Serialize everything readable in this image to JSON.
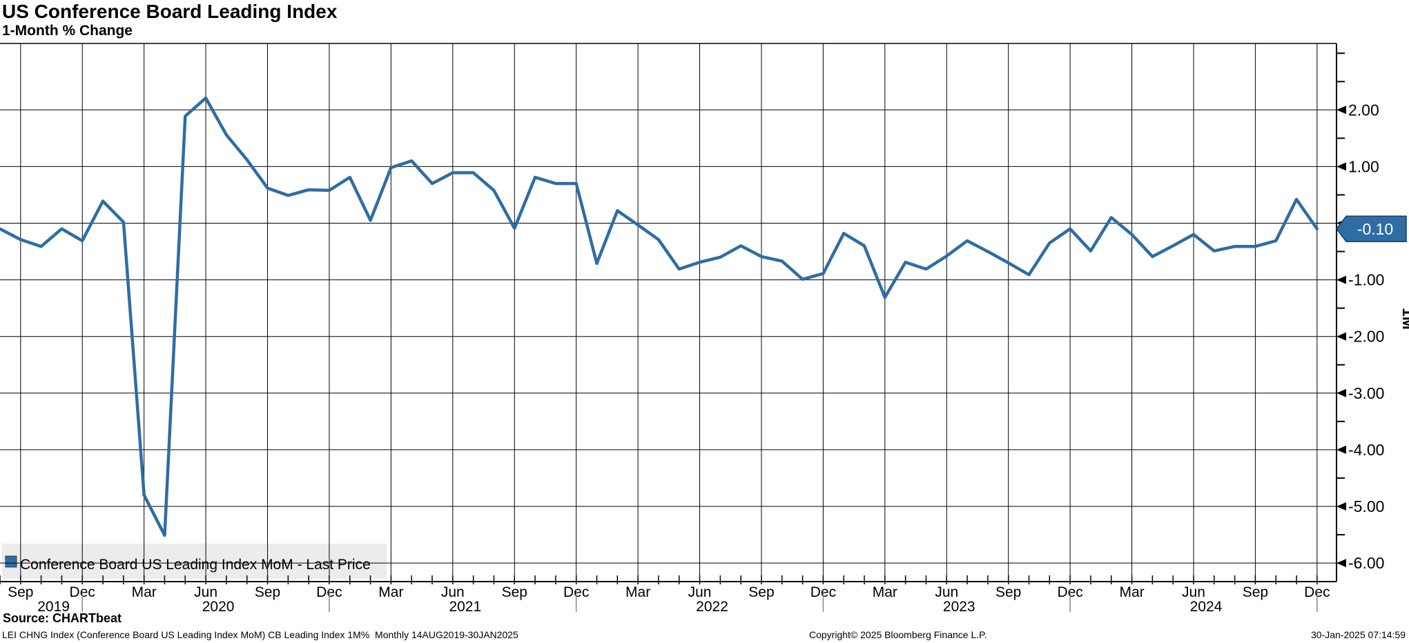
{
  "header": {
    "title": "US Conference Board Leading Index",
    "subtitle": "1-Month % Change"
  },
  "legend": {
    "label": "Conference Board US Leading Index MoM - Last Price"
  },
  "last_price_badge": {
    "label": "-0.10"
  },
  "right_axis_tag": "1M",
  "source_line": "Source: CHARTbeat",
  "footer": {
    "left": "LEI CHNG Index (Conference Board US Leading Index MoM) CB Leading Index 1M%  Monthly 14AUG2019-30JAN2025",
    "center": "Copyright© 2025 Bloomberg Finance L.P.",
    "right": "30-Jan-2025 07:14:59"
  },
  "colors": {
    "line": "#2e6da4",
    "badge_fill": "#2e6da4",
    "badge_border": "#1a3f66",
    "badge_text": "#ffffff",
    "grid": "#000000",
    "legend_bg": "#e7e7e7",
    "year_separator": "#888888"
  },
  "chart_data": {
    "type": "line",
    "title": "US Conference Board Leading Index",
    "subtitle": "1-Month % Change",
    "ylabel": "1M",
    "legend_position": "bottom-left",
    "grid": true,
    "ylim": [
      -6.33,
      3.17
    ],
    "y_tick_values": [
      2,
      1,
      0,
      -1,
      -2,
      -3,
      -4,
      -5,
      -6
    ],
    "y_tick_labels": [
      "2.00",
      "1.00",
      "0.00",
      "-1.00",
      "-2.00",
      "-3.00",
      "-4.00",
      "-5.00",
      "-6.00"
    ],
    "last_value": -0.1,
    "x": [
      "Aug 2019",
      "Sep 2019",
      "Oct 2019",
      "Nov 2019",
      "Dec 2019",
      "Jan 2020",
      "Feb 2020",
      "Mar 2020",
      "Apr 2020",
      "May 2020",
      "Jun 2020",
      "Jul 2020",
      "Aug 2020",
      "Sep 2020",
      "Oct 2020",
      "Nov 2020",
      "Dec 2020",
      "Jan 2021",
      "Feb 2021",
      "Mar 2021",
      "Apr 2021",
      "May 2021",
      "Jun 2021",
      "Jul 2021",
      "Aug 2021",
      "Sep 2021",
      "Oct 2021",
      "Nov 2021",
      "Dec 2021",
      "Jan 2022",
      "Feb 2022",
      "Mar 2022",
      "Apr 2022",
      "May 2022",
      "Jun 2022",
      "Jul 2022",
      "Aug 2022",
      "Sep 2022",
      "Oct 2022",
      "Nov 2022",
      "Dec 2022",
      "Jan 2023",
      "Feb 2023",
      "Mar 2023",
      "Apr 2023",
      "May 2023",
      "Jun 2023",
      "Jul 2023",
      "Aug 2023",
      "Sep 2023",
      "Oct 2023",
      "Nov 2023",
      "Dec 2023",
      "Jan 2024",
      "Feb 2024",
      "Mar 2024",
      "Apr 2024",
      "May 2024",
      "Jun 2024",
      "Jul 2024",
      "Aug 2024",
      "Sep 2024",
      "Oct 2024",
      "Nov 2024",
      "Dec 2024"
    ],
    "series": [
      {
        "name": "Conference Board US Leading Index MoM - Last Price",
        "values": [
          -0.1,
          -0.29,
          -0.41,
          -0.1,
          -0.31,
          0.39,
          0.02,
          -4.8,
          -5.51,
          1.89,
          2.21,
          1.56,
          1.12,
          0.62,
          0.49,
          0.59,
          0.58,
          0.81,
          0.05,
          0.98,
          1.1,
          0.7,
          0.89,
          0.89,
          0.58,
          -0.09,
          0.81,
          0.7,
          0.7,
          -0.71,
          0.22,
          -0.03,
          -0.29,
          -0.81,
          -0.69,
          -0.6,
          -0.4,
          -0.59,
          -0.67,
          -0.99,
          -0.89,
          -0.18,
          -0.4,
          -1.31,
          -0.69,
          -0.81,
          -0.58,
          -0.31,
          -0.5,
          -0.7,
          -0.91,
          -0.35,
          -0.1,
          -0.49,
          0.1,
          -0.2,
          -0.59,
          -0.4,
          -0.2,
          -0.49,
          -0.41,
          -0.41,
          -0.31,
          0.42,
          -0.1
        ]
      }
    ],
    "x_quarter_tick_labels": [
      "Sep",
      "Dec",
      "Mar",
      "Jun",
      "Sep",
      "Dec",
      "Mar",
      "Jun",
      "Sep",
      "Dec",
      "Mar",
      "Jun",
      "Sep",
      "Dec",
      "Mar",
      "Jun",
      "Sep",
      "Dec",
      "Mar",
      "Jun",
      "Sep",
      "Dec"
    ],
    "x_quarter_month_indices": [
      1,
      4,
      7,
      10,
      13,
      16,
      19,
      22,
      25,
      28,
      31,
      34,
      37,
      40,
      43,
      46,
      49,
      52,
      55,
      58,
      61,
      64
    ],
    "year_labels": [
      {
        "label": "2019",
        "month_index": 2
      },
      {
        "label": "2020",
        "month_index": 10
      },
      {
        "label": "2021",
        "month_index": 22
      },
      {
        "label": "2022",
        "month_index": 34
      },
      {
        "label": "2023",
        "month_index": 46
      },
      {
        "label": "2024",
        "month_index": 58
      }
    ],
    "year_separator_month_indices": [
      4,
      16,
      28,
      40,
      52,
      64
    ]
  }
}
